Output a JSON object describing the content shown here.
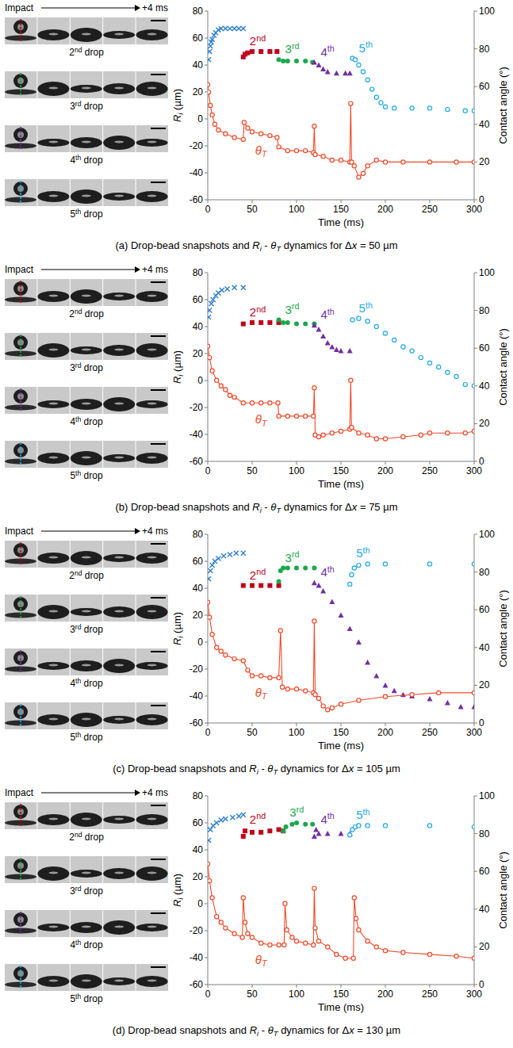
{
  "chart_data": [
    {
      "type": "line",
      "title": "(a) Drop-bead snapshots and Ri - θT dynamics for Δx = 50 µm",
      "x_label": "Time (ms)",
      "y_label": "Ri (µm)",
      "y2_label": "Contact angle (°)",
      "xlim": [
        0,
        300
      ],
      "xticks": [
        0,
        50,
        100,
        150,
        200,
        250,
        300
      ],
      "ylim": [
        -60,
        80
      ],
      "yticks": [
        -60,
        -40,
        -20,
        0,
        20,
        40,
        60,
        80
      ],
      "y2lim": [
        0,
        100
      ],
      "y2ticks": [
        0,
        20,
        40,
        60,
        80,
        100
      ],
      "grid": false,
      "snapshots": {
        "start_label": "Impact",
        "end_label": "+4 ms",
        "labels": [
          "2nd drop",
          "3rd drop",
          "4th drop",
          "5th drop"
        ]
      },
      "series": [
        {
          "color": "#2f7fd0",
          "marker": "x",
          "x": [
            1,
            2,
            3,
            4,
            5,
            7,
            9,
            12,
            15,
            20,
            25,
            30,
            35,
            40
          ],
          "values": [
            44,
            50,
            54,
            57,
            59,
            62,
            64,
            66,
            67,
            67,
            67,
            67,
            67,
            67
          ]
        },
        {
          "name": "2nd",
          "color": "#c0001b",
          "marker": "square",
          "x": [
            40,
            42,
            45,
            50,
            60,
            70,
            78
          ],
          "values": [
            46,
            48,
            49,
            50,
            50,
            50,
            50
          ]
        },
        {
          "name": "3rd",
          "color": "#1aa84a",
          "marker": "circle",
          "x": [
            80,
            85,
            90,
            100,
            110,
            118
          ],
          "values": [
            44,
            43,
            43,
            43,
            43,
            42
          ]
        },
        {
          "name": "4th",
          "color": "#7030a0",
          "marker": "triangle",
          "x": [
            120,
            125,
            130,
            135,
            145,
            155,
            160
          ],
          "values": [
            42,
            40,
            37,
            35,
            34,
            34,
            34
          ]
        },
        {
          "name": "5th",
          "color": "#22a9e6",
          "marker": "open-circle",
          "x": [
            163,
            166,
            170,
            175,
            180,
            185,
            190,
            195,
            200,
            210,
            230,
            250,
            270,
            290,
            300
          ],
          "values": [
            45,
            44,
            40,
            35,
            29,
            22,
            16,
            12,
            9,
            8,
            8,
            8,
            7,
            6,
            6
          ]
        },
        {
          "name": "θT",
          "color": "#f04a2a",
          "marker": "open-circle",
          "line_style": "solid",
          "axis": "y2",
          "x": [
            0,
            1,
            3,
            5,
            8,
            12,
            20,
            30,
            40,
            41,
            45,
            50,
            60,
            70,
            78,
            80,
            90,
            100,
            110,
            119,
            120,
            121,
            130,
            140,
            150,
            160,
            161,
            162,
            165,
            170,
            175,
            180,
            190,
            200,
            220,
            250,
            280,
            300
          ],
          "values": [
            61,
            57,
            50,
            45,
            40,
            37,
            35,
            33,
            32,
            41,
            38,
            36,
            35,
            34,
            33,
            28,
            26,
            26,
            26,
            25,
            39,
            24,
            23,
            21,
            21,
            20,
            51,
            20,
            18,
            12,
            14,
            18,
            21,
            20,
            20,
            20,
            20,
            20
          ]
        }
      ]
    },
    {
      "type": "line",
      "title": "(b) Drop-bead snapshots and Ri - θT dynamics for Δx = 75 µm",
      "x_label": "Time (ms)",
      "y_label": "Ri (µm)",
      "y2_label": "Contact angle (°)",
      "xlim": [
        0,
        300
      ],
      "xticks": [
        0,
        50,
        100,
        150,
        200,
        250,
        300
      ],
      "ylim": [
        -60,
        80
      ],
      "yticks": [
        -60,
        -40,
        -20,
        0,
        20,
        40,
        60,
        80
      ],
      "y2lim": [
        0,
        100
      ],
      "y2ticks": [
        0,
        20,
        40,
        60,
        80,
        100
      ],
      "grid": false,
      "snapshots": {
        "start_label": "Impact",
        "end_label": "+4 ms",
        "labels": [
          "2nd drop",
          "3rd drop",
          "4th drop",
          "5th drop"
        ]
      },
      "series": [
        {
          "color": "#2f7fd0",
          "marker": "x",
          "x": [
            1,
            2,
            4,
            6,
            9,
            12,
            16,
            22,
            30,
            40
          ],
          "values": [
            47,
            52,
            57,
            60,
            63,
            65,
            67,
            68,
            69,
            69
          ]
        },
        {
          "name": "2nd",
          "color": "#c0001b",
          "marker": "square",
          "x": [
            40,
            50,
            60,
            70,
            80
          ],
          "values": [
            42,
            43,
            43,
            43,
            43
          ]
        },
        {
          "name": "3rd",
          "color": "#1aa84a",
          "marker": "circle",
          "x": [
            80,
            85,
            90,
            100,
            110,
            120
          ],
          "values": [
            45,
            43,
            43,
            42,
            42,
            42
          ]
        },
        {
          "name": "4th",
          "color": "#7030a0",
          "marker": "triangle",
          "x": [
            120,
            125,
            130,
            135,
            140,
            145,
            150,
            160
          ],
          "values": [
            41,
            38,
            33,
            28,
            25,
            23,
            22,
            22
          ]
        },
        {
          "name": "5th",
          "color": "#22a9e6",
          "marker": "open-circle",
          "x": [
            163,
            170,
            180,
            190,
            200,
            210,
            220,
            230,
            240,
            250,
            260,
            270,
            280,
            290,
            300
          ],
          "values": [
            45,
            46,
            44,
            40,
            35,
            30,
            25,
            22,
            17,
            13,
            10,
            6,
            3,
            -3,
            -4
          ]
        },
        {
          "name": "θT",
          "color": "#f04a2a",
          "marker": "open-circle",
          "line_style": "solid",
          "axis": "y2",
          "x": [
            0,
            2,
            5,
            10,
            15,
            20,
            25,
            30,
            40,
            50,
            60,
            70,
            79,
            80,
            90,
            100,
            110,
            119,
            120,
            121,
            125,
            130,
            140,
            150,
            160,
            161,
            162,
            170,
            180,
            190,
            200,
            220,
            240,
            250,
            270,
            290,
            300
          ],
          "values": [
            61,
            55,
            48,
            43,
            40,
            38,
            35,
            34,
            31,
            31,
            31,
            31,
            31,
            24,
            24,
            24,
            24,
            24,
            39,
            14,
            13,
            14,
            15,
            16,
            17,
            43,
            18,
            15,
            14,
            12,
            12,
            13,
            14,
            15,
            15,
            15,
            16
          ]
        }
      ]
    },
    {
      "type": "line",
      "title": "(c) Drop-bead snapshots and Ri - θT dynamics for Δx = 105 µm",
      "x_label": "Time (ms)",
      "y_label": "Ri (µm)",
      "y2_label": "Contact angle (°)",
      "xlim": [
        0,
        300
      ],
      "xticks": [
        0,
        50,
        100,
        150,
        200,
        250,
        300
      ],
      "ylim": [
        -60,
        80
      ],
      "yticks": [
        -60,
        -40,
        -20,
        0,
        20,
        40,
        60,
        80
      ],
      "y2lim": [
        0,
        100
      ],
      "y2ticks": [
        0,
        20,
        40,
        60,
        80,
        100
      ],
      "grid": false,
      "snapshots": {
        "start_label": "Impact",
        "end_label": "+4 ms",
        "labels": [
          "2nd drop",
          "3rd drop",
          "4th drop",
          "5th drop"
        ]
      },
      "series": [
        {
          "color": "#2f7fd0",
          "marker": "x",
          "x": [
            1,
            3,
            5,
            8,
            12,
            18,
            25,
            32,
            40
          ],
          "values": [
            47,
            53,
            57,
            60,
            62,
            64,
            65,
            66,
            66
          ]
        },
        {
          "name": "2nd",
          "color": "#c0001b",
          "marker": "square",
          "x": [
            40,
            50,
            60,
            70,
            80
          ],
          "values": [
            42,
            42,
            42,
            42,
            42
          ]
        },
        {
          "name": "3rd",
          "color": "#1aa84a",
          "marker": "circle",
          "x": [
            80,
            82,
            85,
            90,
            100,
            110,
            120
          ],
          "values": [
            45,
            53,
            55,
            55,
            55,
            55,
            55
          ]
        },
        {
          "name": "4th",
          "color": "#7030a0",
          "marker": "triangle",
          "x": [
            120,
            125,
            130,
            140,
            150,
            160,
            170,
            180,
            190,
            200,
            210,
            220,
            230,
            250,
            270,
            285,
            300
          ],
          "values": [
            44,
            42,
            38,
            30,
            20,
            10,
            0,
            -15,
            -25,
            -32,
            -36,
            -39,
            -40,
            -42,
            -45,
            -48,
            -48
          ]
        },
        {
          "name": "5th",
          "color": "#22a9e6",
          "marker": "open-circle",
          "x": [
            160,
            162,
            165,
            170,
            180,
            200,
            250,
            300
          ],
          "values": [
            43,
            50,
            55,
            57,
            58,
            58,
            58,
            58
          ]
        },
        {
          "name": "θT",
          "color": "#f04a2a",
          "marker": "open-circle",
          "line_style": "solid",
          "axis": "y2",
          "x": [
            0,
            2,
            5,
            10,
            15,
            20,
            30,
            40,
            45,
            50,
            60,
            70,
            80,
            82,
            84,
            90,
            100,
            110,
            119,
            120,
            121,
            125,
            130,
            135,
            140,
            150,
            170,
            200,
            230,
            260,
            300
          ],
          "values": [
            64,
            56,
            47,
            40,
            38,
            36,
            34,
            33,
            28,
            25,
            25,
            24,
            24,
            49,
            19,
            18,
            18,
            17,
            16,
            54,
            15,
            13,
            9,
            7,
            8,
            10,
            12,
            14,
            15,
            16,
            16
          ]
        }
      ]
    },
    {
      "type": "line",
      "title": "(d) Drop-bead snapshots and Ri - θT dynamics for Δx = 130 µm",
      "x_label": "Time (ms)",
      "y_label": "Ri (µm)",
      "y2_label": "Contact angle (°)",
      "xlim": [
        0,
        300
      ],
      "xticks": [
        0,
        50,
        100,
        150,
        200,
        250,
        300
      ],
      "ylim": [
        -60,
        80
      ],
      "yticks": [
        -60,
        -40,
        -20,
        0,
        20,
        40,
        60,
        80
      ],
      "y2lim": [
        0,
        100
      ],
      "y2ticks": [
        0,
        20,
        40,
        60,
        80,
        100
      ],
      "grid": false,
      "snapshots": {
        "start_label": "Impact",
        "end_label": "+4 ms",
        "labels": [
          "2nd drop",
          "3rd drop",
          "4th drop",
          "5th drop"
        ]
      },
      "series": [
        {
          "color": "#2f7fd0",
          "marker": "x",
          "x": [
            1,
            3,
            6,
            10,
            15,
            20,
            28,
            35,
            40
          ],
          "values": [
            47,
            55,
            58,
            60,
            62,
            63,
            64,
            65,
            66
          ]
        },
        {
          "name": "2nd",
          "color": "#c0001b",
          "marker": "square",
          "x": [
            40,
            42,
            50,
            60,
            70,
            80,
            85
          ],
          "values": [
            50,
            54,
            53,
            53,
            54,
            55,
            54
          ]
        },
        {
          "name": "3rd",
          "color": "#1aa84a",
          "marker": "circle",
          "x": [
            85,
            88,
            95,
            100,
            110,
            118
          ],
          "values": [
            54,
            57,
            59,
            60,
            59,
            59
          ]
        },
        {
          "name": "4th",
          "color": "#7030a0",
          "marker": "triangle",
          "x": [
            120,
            122,
            125,
            135,
            150,
            160
          ],
          "values": [
            50,
            55,
            52,
            52,
            52,
            52
          ]
        },
        {
          "name": "5th",
          "color": "#22a9e6",
          "marker": "open-circle",
          "x": [
            160,
            163,
            166,
            170,
            180,
            200,
            250,
            300
          ],
          "values": [
            51,
            55,
            57,
            58,
            58,
            58,
            58,
            57
          ]
        },
        {
          "name": "θT",
          "color": "#f04a2a",
          "marker": "open-circle",
          "line_style": "solid",
          "axis": "y2",
          "x": [
            0,
            2,
            5,
            10,
            15,
            20,
            30,
            39,
            40,
            42,
            45,
            50,
            60,
            70,
            80,
            86,
            87,
            89,
            95,
            100,
            110,
            119,
            120,
            121,
            125,
            135,
            145,
            155,
            164,
            165,
            167,
            170,
            180,
            190,
            200,
            220,
            250,
            280,
            300
          ],
          "values": [
            64,
            55,
            46,
            36,
            33,
            30,
            27,
            25,
            46,
            33,
            27,
            25,
            22,
            21,
            21,
            21,
            43,
            29,
            25,
            23,
            22,
            21,
            51,
            30,
            23,
            20,
            16,
            14,
            14,
            46,
            35,
            29,
            23,
            20,
            18,
            17,
            16,
            15,
            14
          ]
        }
      ]
    }
  ]
}
